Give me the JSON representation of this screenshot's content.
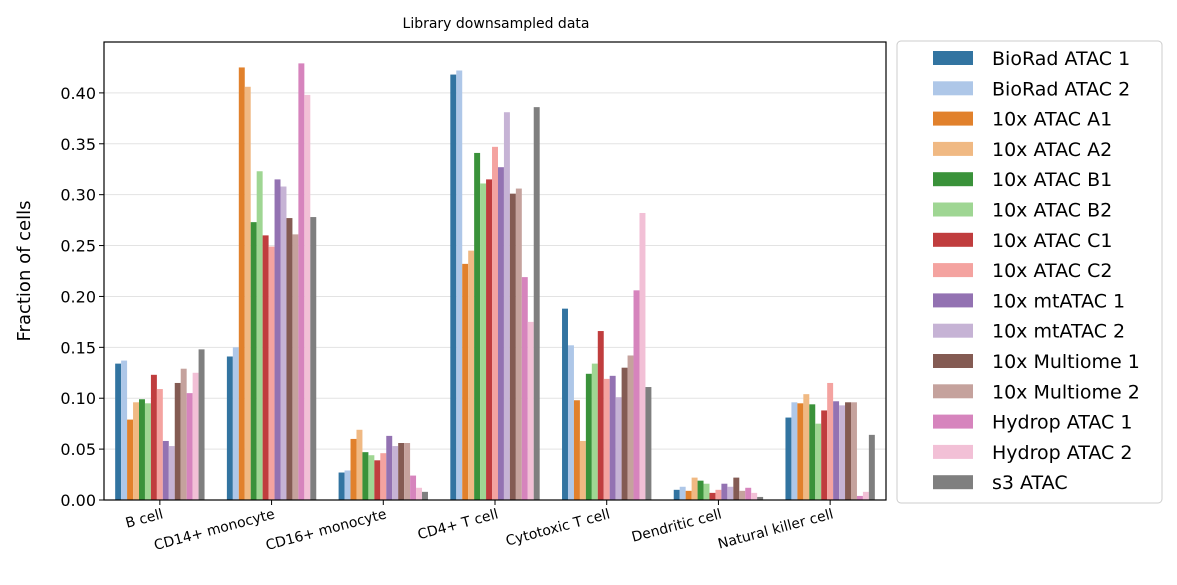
{
  "chart_data": {
    "type": "bar",
    "title": "Library downsampled data",
    "xlabel": "",
    "ylabel": "Fraction of cells",
    "ylim": [
      0,
      0.45
    ],
    "yticks": [
      "0.00",
      "0.05",
      "0.10",
      "0.15",
      "0.20",
      "0.25",
      "0.30",
      "0.35",
      "0.40"
    ],
    "grid": "horizontal",
    "legend_position": "outside-right",
    "categories": [
      "B cell",
      "CD14+ monocyte",
      "CD16+ monocyte",
      "CD4+ T cell",
      "Cytotoxic T cell",
      "Dendritic cell",
      "Natural killer cell"
    ],
    "series": [
      {
        "name": "BioRad ATAC 1",
        "color": "#3274a1",
        "values": [
          0.134,
          0.141,
          0.027,
          0.418,
          0.188,
          0.01,
          0.081
        ]
      },
      {
        "name": "BioRad ATAC 2",
        "color": "#aec7e8",
        "values": [
          0.137,
          0.15,
          0.029,
          0.422,
          0.152,
          0.013,
          0.096
        ]
      },
      {
        "name": "10x ATAC A1",
        "color": "#e1812c",
        "values": [
          0.079,
          0.425,
          0.06,
          0.232,
          0.098,
          0.009,
          0.095
        ]
      },
      {
        "name": "10x ATAC A2",
        "color": "#f0b983",
        "values": [
          0.096,
          0.406,
          0.069,
          0.245,
          0.058,
          0.022,
          0.104
        ]
      },
      {
        "name": "10x ATAC B1",
        "color": "#3a923a",
        "values": [
          0.099,
          0.273,
          0.047,
          0.341,
          0.124,
          0.019,
          0.094
        ]
      },
      {
        "name": "10x ATAC B2",
        "color": "#9fd693",
        "values": [
          0.095,
          0.323,
          0.044,
          0.311,
          0.134,
          0.016,
          0.075
        ]
      },
      {
        "name": "10x ATAC C1",
        "color": "#c03d3e",
        "values": [
          0.123,
          0.26,
          0.039,
          0.315,
          0.166,
          0.007,
          0.088
        ]
      },
      {
        "name": "10x ATAC C2",
        "color": "#f4a3a0",
        "values": [
          0.109,
          0.249,
          0.046,
          0.347,
          0.119,
          0.01,
          0.115
        ]
      },
      {
        "name": "10x mtATAC 1",
        "color": "#9372b2",
        "values": [
          0.058,
          0.315,
          0.063,
          0.327,
          0.122,
          0.016,
          0.097
        ]
      },
      {
        "name": "10x mtATAC 2",
        "color": "#c6b3d5",
        "values": [
          0.053,
          0.308,
          0.053,
          0.381,
          0.101,
          0.013,
          0.093
        ]
      },
      {
        "name": "10x Multiome 1",
        "color": "#845b53",
        "values": [
          0.115,
          0.277,
          0.056,
          0.301,
          0.13,
          0.022,
          0.096
        ]
      },
      {
        "name": "10x Multiome 2",
        "color": "#c5a29d",
        "values": [
          0.129,
          0.261,
          0.056,
          0.306,
          0.142,
          0.009,
          0.096
        ]
      },
      {
        "name": "Hydrop ATAC 1",
        "color": "#d684bd",
        "values": [
          0.105,
          0.429,
          0.024,
          0.219,
          0.206,
          0.012,
          0.004
        ]
      },
      {
        "name": "Hydrop ATAC 2",
        "color": "#f2c0d6",
        "values": [
          0.125,
          0.398,
          0.012,
          0.175,
          0.282,
          0.007,
          0.008
        ]
      },
      {
        "name": "s3 ATAC",
        "color": "#7f7f7f",
        "values": [
          0.148,
          0.278,
          0.008,
          0.386,
          0.111,
          0.003,
          0.064
        ]
      }
    ]
  }
}
